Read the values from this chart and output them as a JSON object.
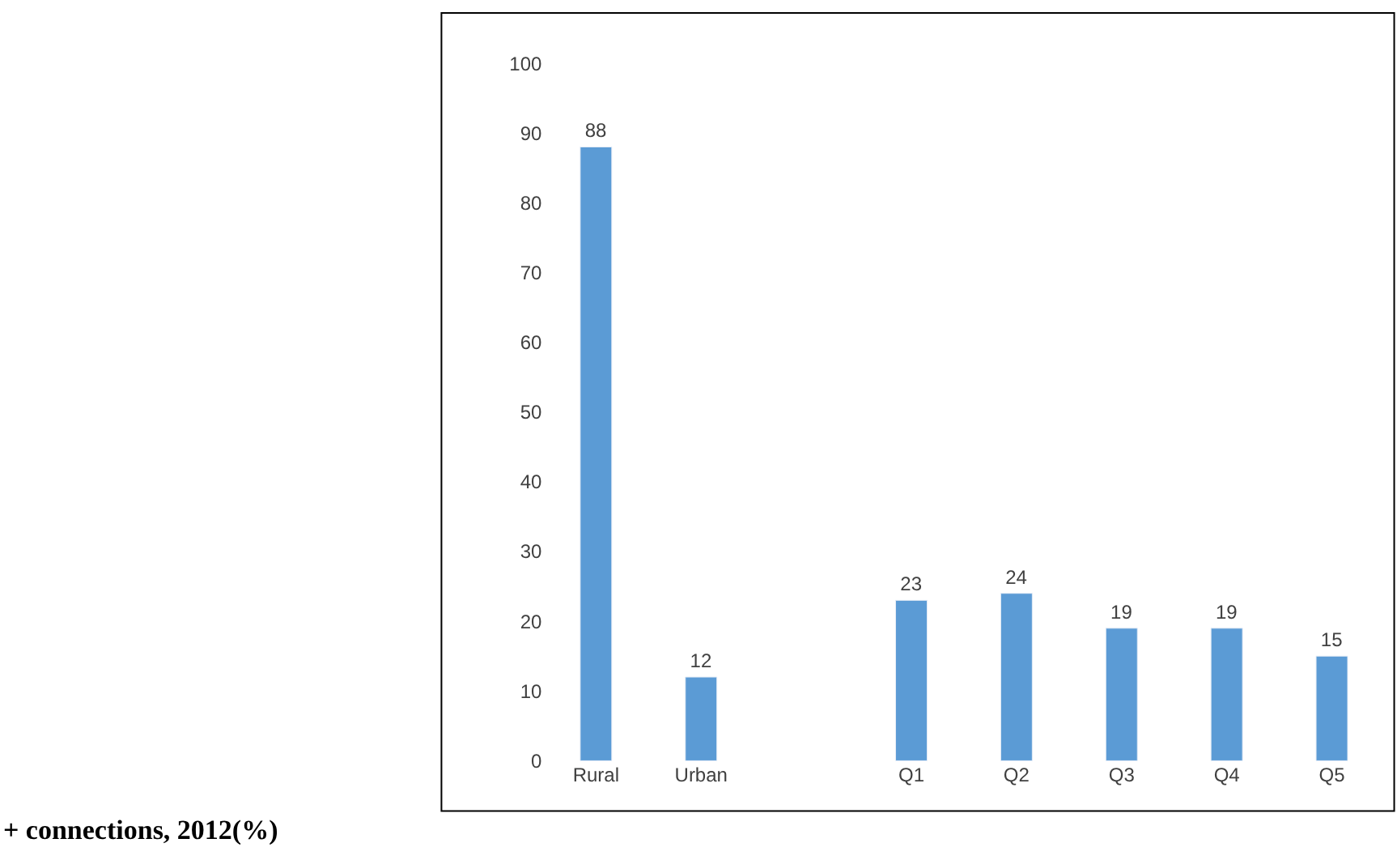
{
  "chart_data": {
    "type": "bar",
    "categories": [
      "Rural",
      "Urban",
      null,
      "Q1",
      "Q2",
      "Q3",
      "Q4",
      "Q5"
    ],
    "values": [
      88,
      12,
      null,
      23,
      24,
      19,
      19,
      15
    ],
    "color": "#5b9bd5",
    "ylim": [
      0,
      100
    ],
    "yticks": [
      0,
      10,
      20,
      30,
      40,
      50,
      60,
      70,
      80,
      90,
      100
    ],
    "data_labels": true,
    "annotations": [
      "+ connections, 2012(%)"
    ]
  }
}
